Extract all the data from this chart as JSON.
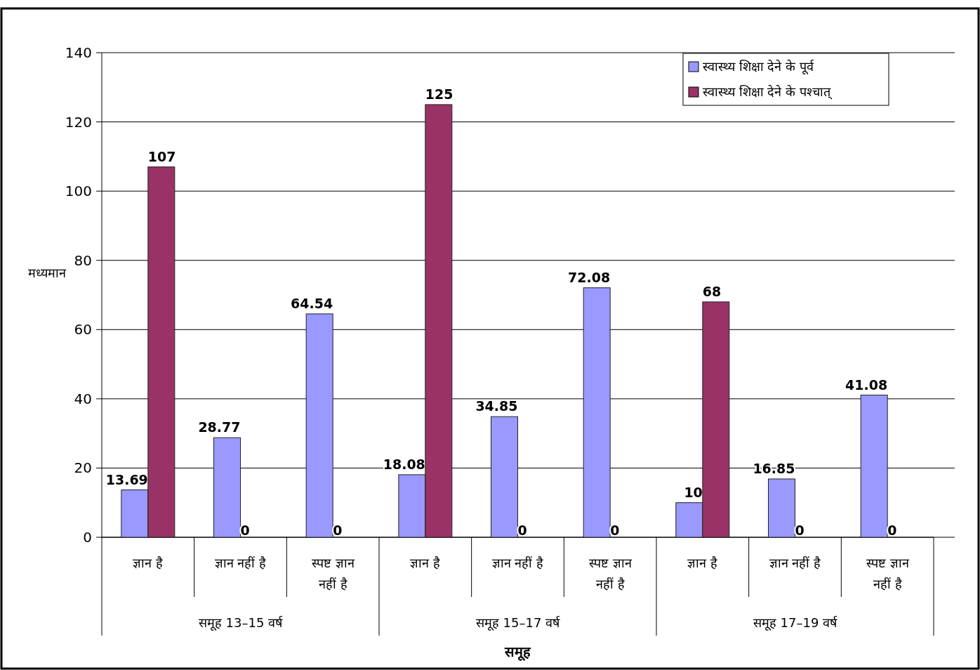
{
  "chart_data": {
    "type": "bar",
    "xlabel": "समूह",
    "ylabel": "मध्यमान",
    "categories": [
      "ज्ञान है",
      "ज्ञान नहीं है",
      "स्पष्ट ज्ञान नहीं है",
      "ज्ञान है",
      "ज्ञान नहीं है",
      "स्पष्ट ज्ञान नहीं है",
      "ज्ञान है",
      "ज्ञान नहीं है",
      "स्पष्ट ज्ञान नहीं है"
    ],
    "series": [
      {
        "name": "स्वास्थ्य शिक्षा देने के पूर्व",
        "color": "#9999ff",
        "values": [
          13.69,
          28.77,
          64.54,
          18.08,
          34.85,
          72.08,
          10,
          16.85,
          41.08
        ]
      },
      {
        "name": "स्वास्थ्य शिक्षा देने के पश्चात्",
        "color": "#993366",
        "values": [
          107,
          0,
          0,
          125,
          0,
          0,
          68,
          0,
          0
        ]
      }
    ],
    "annotations": [
      "समूह 13–15 वर्ष",
      "समूह 15–17 वर्ष",
      "समूह 17–19 वर्ष"
    ],
    "ylim": [
      0,
      140
    ],
    "yticks": [
      0,
      20,
      40,
      60,
      80,
      100,
      120,
      140
    ],
    "grid": "y",
    "legend": "top right",
    "data_labels": true
  }
}
